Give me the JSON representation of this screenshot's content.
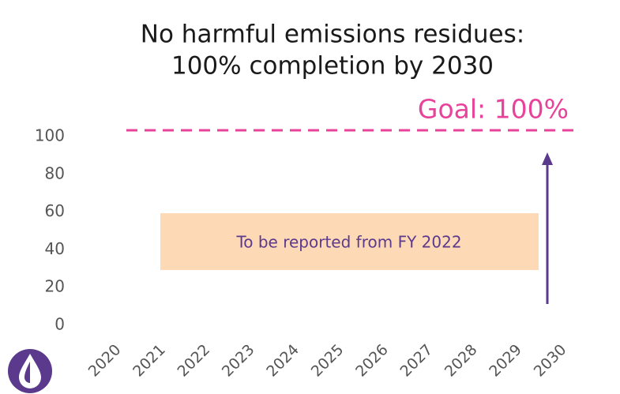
{
  "chart_data": {
    "type": "line",
    "title": [
      "No harmful emissions residues:",
      "100% completion by 2030"
    ],
    "categories": [
      "2020",
      "2021",
      "2022",
      "2023",
      "2024",
      "2025",
      "2026",
      "2027",
      "2028",
      "2029",
      "2030"
    ],
    "ylim": [
      0,
      100
    ],
    "yticks": [
      0,
      20,
      40,
      60,
      80,
      100
    ],
    "goal": {
      "value": 100,
      "label": "Goal: 100%",
      "color": "#e8439a"
    },
    "annotation": "To be reported from FY 2022"
  }
}
